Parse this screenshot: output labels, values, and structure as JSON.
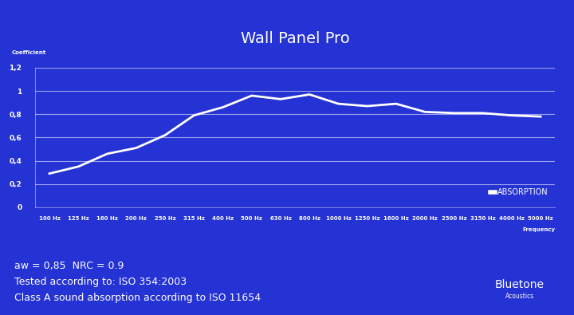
{
  "chart_data": {
    "type": "line",
    "title": "Wall Panel Pro",
    "y_label": "Coefficient",
    "x_label": "Frequency",
    "categories": [
      "100 Hz",
      "125 Hz",
      "160 Hz",
      "200 Hz",
      "250 Hz",
      "315 Hz",
      "400 Hz",
      "500 Hz",
      "630 Hz",
      "800 Hz",
      "1000 Hz",
      "1250 Hz",
      "1600 Hz",
      "2000 Hz",
      "2500 Hz",
      "3150 Hz",
      "4000 Hz",
      "5000 Hz"
    ],
    "series": [
      {
        "name": "ABSORPTION",
        "color": "#ffffff",
        "values": [
          0.29,
          0.35,
          0.46,
          0.51,
          0.62,
          0.79,
          0.86,
          0.96,
          0.93,
          0.97,
          0.89,
          0.87,
          0.89,
          0.82,
          0.81,
          0.81,
          0.79,
          0.78
        ]
      }
    ],
    "ylim": [
      0,
      1.2
    ],
    "yticks": [
      0,
      {
        "value": 0.2,
        "label": "0,2"
      },
      {
        "value": 0.4,
        "label": "0,4"
      },
      {
        "value": 0.6,
        "label": "0,6"
      },
      {
        "value": 0.8,
        "label": "0,8"
      },
      1,
      {
        "value": 1.2,
        "label": "1,2"
      }
    ],
    "grid": true,
    "legend": "lower right",
    "annotations": [
      "aw = 0,85  NRC = 0.9",
      "Tested according to: ISO 354:2003",
      "Class A sound absorption according to ISO 11654",
      "Bluetone",
      "Acoustics"
    ]
  }
}
